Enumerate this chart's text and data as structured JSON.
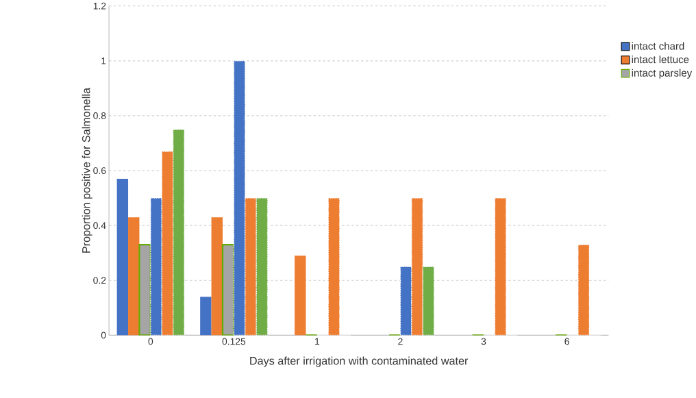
{
  "chart_data": {
    "type": "bar",
    "xlabel": "Days after irrigation with contaminated water",
    "ylabel": "Proportion positive for Salmonella",
    "categories": [
      "0",
      "0.125",
      "1",
      "2",
      "3",
      "6"
    ],
    "series": [
      {
        "name": "intact chard",
        "color": "#4472c4",
        "values": [
          0.57,
          0.14,
          0,
          0,
          0,
          0
        ]
      },
      {
        "name": "intact lettuce",
        "color": "#ed7d31",
        "values": [
          0.43,
          0.43,
          0.29,
          0,
          0,
          0
        ]
      },
      {
        "name": "intact parsley",
        "color": "#a5a5a5",
        "values": [
          0.33,
          0.33,
          0,
          0,
          0,
          0
        ]
      },
      {
        "color": "#4472c4",
        "line_style": "dotted",
        "values": [
          0.5,
          1.0,
          0,
          0.25,
          0,
          0
        ]
      },
      {
        "color": "#ed7d31",
        "line_style": "dotted",
        "values": [
          0.67,
          0.5,
          0.5,
          0.5,
          0.5,
          0.33
        ]
      },
      {
        "color": "#70ad47",
        "line_style": "dotted",
        "values": [
          0.75,
          0.5,
          0,
          0.25,
          0,
          0
        ]
      }
    ],
    "ylim": [
      0,
      1.2
    ],
    "yticks": [
      0,
      0.2,
      0.4,
      0.6,
      0.8,
      1,
      1.2
    ],
    "grid": "y",
    "legend": "right"
  }
}
